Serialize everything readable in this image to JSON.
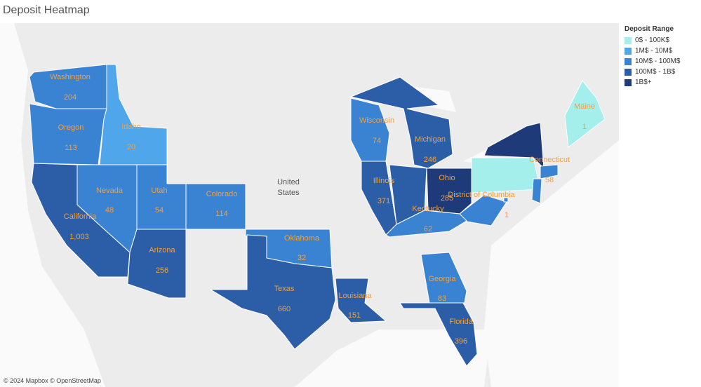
{
  "title": "Deposit Heatmap",
  "legend": {
    "title": "Deposit Range",
    "items": [
      {
        "label": "0$ - 100K$",
        "color": "#a4efec"
      },
      {
        "label": "1M$ - 10M$",
        "color": "#4fa6ea"
      },
      {
        "label": "10M$ - 100M$",
        "color": "#3a83d2"
      },
      {
        "label": "100M$ - 1B$",
        "color": "#2c5ea8"
      },
      {
        "label": "1B$+",
        "color": "#1f3a78"
      }
    ]
  },
  "map_label": [
    "United",
    "States"
  ],
  "attribution": "© 2024 Mapbox © OpenStreetMap",
  "states": [
    {
      "name": "Washington",
      "count": 204,
      "color": "#3a83d2"
    },
    {
      "name": "Oregon",
      "count": 113,
      "color": "#3a83d2"
    },
    {
      "name": "Idaho",
      "count": 20,
      "color": "#4fa6ea"
    },
    {
      "name": "California",
      "count": 1003,
      "count_label": "1,003",
      "color": "#2c5ea8"
    },
    {
      "name": "Nevada",
      "count": 48,
      "color": "#3a83d2"
    },
    {
      "name": "Utah",
      "count": 54,
      "color": "#3a83d2"
    },
    {
      "name": "Colorado",
      "count": 114,
      "color": "#3a83d2"
    },
    {
      "name": "Arizona",
      "count": 256,
      "color": "#2c5ea8"
    },
    {
      "name": "Oklahoma",
      "count": 32,
      "color": "#3a83d2"
    },
    {
      "name": "Texas",
      "count": 660,
      "color": "#2c5ea8"
    },
    {
      "name": "Louisiana",
      "count": 151,
      "color": "#2c5ea8"
    },
    {
      "name": "Georgia",
      "count": 83,
      "color": "#3a83d2"
    },
    {
      "name": "Florida",
      "count": 396,
      "color": "#2c5ea8"
    },
    {
      "name": "Wisconsin",
      "count": 74,
      "color": "#3a83d2"
    },
    {
      "name": "Michigan",
      "count": 246,
      "color": "#2c5ea8"
    },
    {
      "name": "Illinois",
      "count": 371,
      "color": "#2c5ea8"
    },
    {
      "name": "Ohio",
      "count": 285,
      "color": "#1f3a78"
    },
    {
      "name": "Kentucky",
      "count": 62,
      "color": "#3a83d2"
    },
    {
      "name": "Maine",
      "count": 1,
      "color": "#a4efec"
    },
    {
      "name": "Connecticut",
      "count": 58,
      "color": "#3a83d2"
    },
    {
      "name": "District of Columbia",
      "count": 1,
      "color": "#3a83d2"
    }
  ]
}
